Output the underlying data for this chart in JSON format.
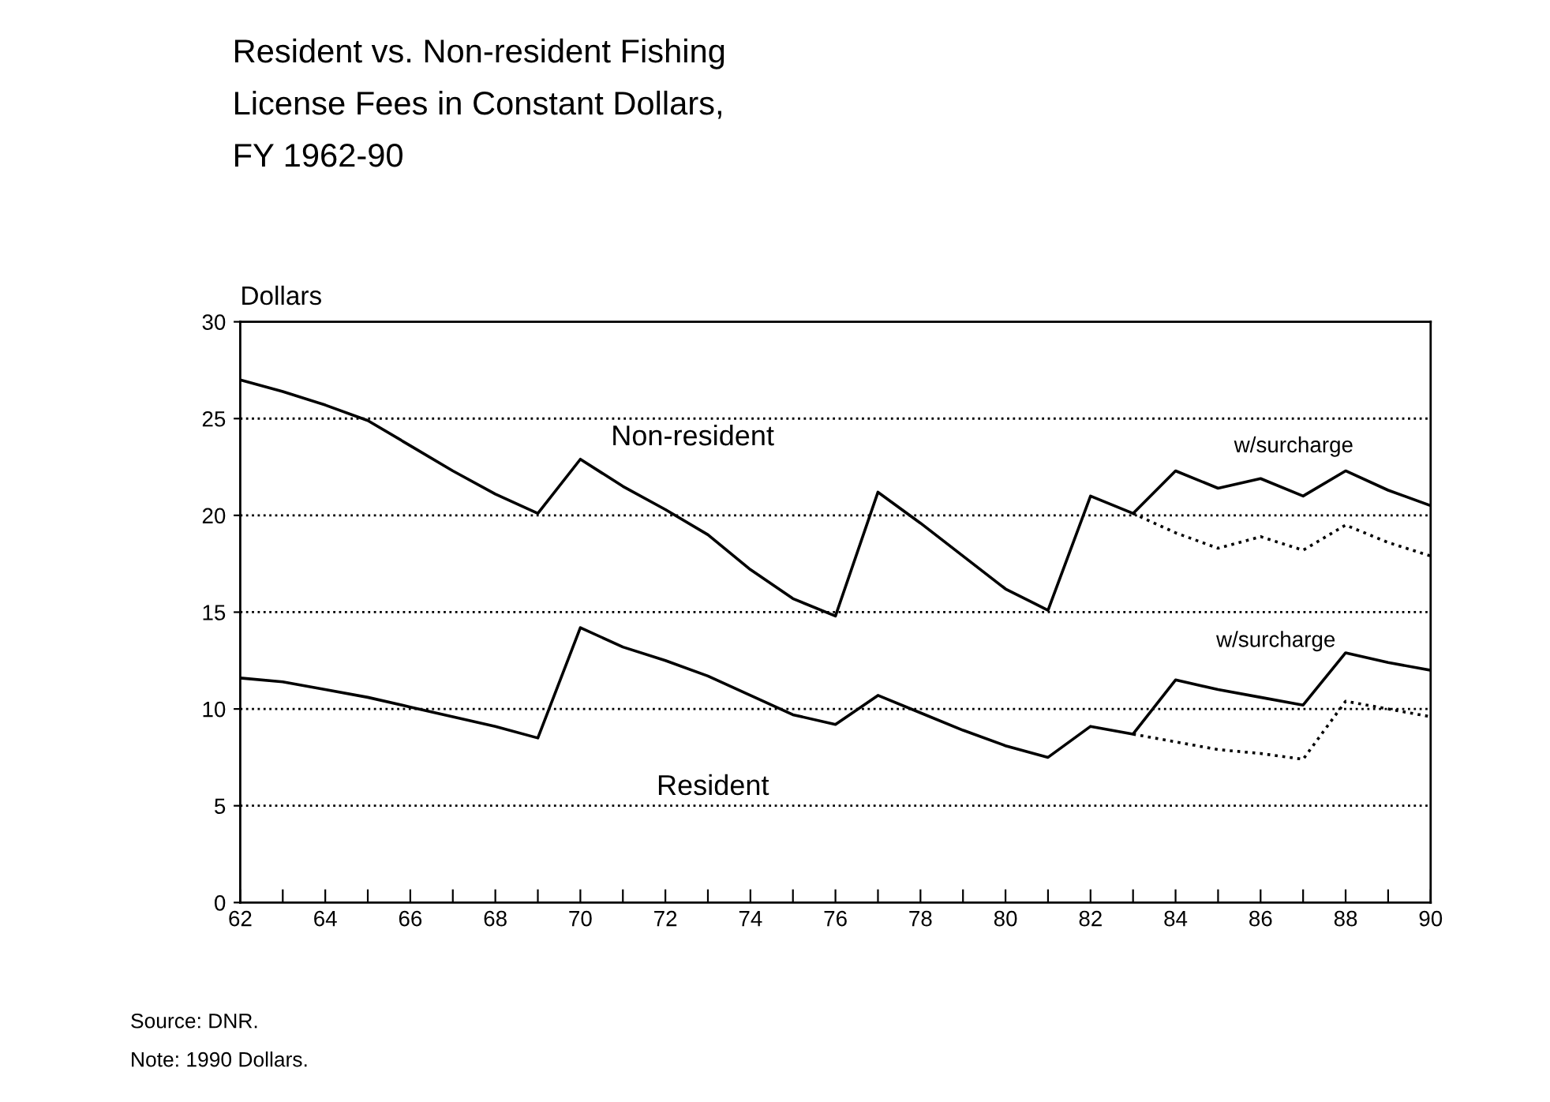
{
  "chart_data": {
    "type": "line",
    "title": "Resident vs. Non-resident Fishing\nLicense Fees in Constant Dollars,\nFY 1962-90",
    "ylabel": "Dollars",
    "x": [
      62,
      63,
      64,
      65,
      66,
      67,
      68,
      69,
      70,
      71,
      72,
      73,
      74,
      75,
      76,
      77,
      78,
      79,
      80,
      81,
      82,
      83,
      84,
      85,
      86,
      87,
      88,
      89,
      90
    ],
    "series": [
      {
        "color": "#000000",
        "line_style": "solid",
        "values": [
          27,
          26.4,
          25.7,
          24.9,
          23.6,
          22.3,
          21.1,
          20.1,
          22.9,
          21.5,
          20.3,
          19.0,
          17.2,
          15.7,
          14.8,
          21.2,
          19.6,
          17.9,
          16.2,
          15.1,
          21.0,
          20.1,
          22.3,
          21.4,
          21.9,
          21.0,
          22.3,
          21.3,
          20.5
        ]
      },
      {
        "color": "#000000",
        "line_style": "dotted",
        "x": [
          83,
          84,
          85,
          86,
          87,
          88,
          89,
          90
        ],
        "values": [
          20.1,
          19.1,
          18.3,
          18.9,
          18.2,
          19.5,
          18.6,
          17.9
        ]
      },
      {
        "color": "#000000",
        "line_style": "solid",
        "values": [
          11.6,
          11.4,
          11.0,
          10.6,
          10.1,
          9.6,
          9.1,
          8.5,
          14.2,
          13.2,
          12.5,
          11.7,
          10.7,
          9.7,
          9.2,
          10.7,
          9.8,
          8.9,
          8.1,
          7.5,
          9.1,
          8.7,
          11.5,
          11.0,
          10.6,
          10.2,
          12.9,
          12.4,
          12.0
        ]
      },
      {
        "color": "#000000",
        "line_style": "dotted",
        "x": [
          83,
          84,
          85,
          86,
          87,
          88,
          89,
          90
        ],
        "values": [
          8.7,
          8.3,
          7.9,
          7.7,
          7.4,
          10.4,
          10.0,
          9.6
        ]
      }
    ],
    "annotations": [
      "Non-resident",
      "w/surcharge",
      "w/surcharge",
      "Resident",
      "Source: DNR.",
      "Note: 1990 Dollars."
    ],
    "xlim": [
      62,
      90
    ],
    "ylim": [
      0,
      30
    ],
    "xticks": [
      62,
      {
        "value": 63,
        "label": null
      },
      64,
      {
        "value": 65,
        "label": null
      },
      66,
      {
        "value": 67,
        "label": null
      },
      68,
      {
        "value": 69,
        "label": null
      },
      70,
      {
        "value": 71,
        "label": null
      },
      72,
      {
        "value": 73,
        "label": null
      },
      74,
      {
        "value": 75,
        "label": null
      },
      76,
      {
        "value": 77,
        "label": null
      },
      78,
      {
        "value": 79,
        "label": null
      },
      80,
      {
        "value": 81,
        "label": null
      },
      82,
      {
        "value": 83,
        "label": null
      },
      84,
      {
        "value": 85,
        "label": null
      },
      86,
      {
        "value": 87,
        "label": null
      },
      88,
      {
        "value": 89,
        "label": null
      },
      90
    ],
    "yticks": [
      0,
      5,
      10,
      15,
      20,
      25,
      30
    ],
    "grid": "y",
    "marker": "none"
  }
}
